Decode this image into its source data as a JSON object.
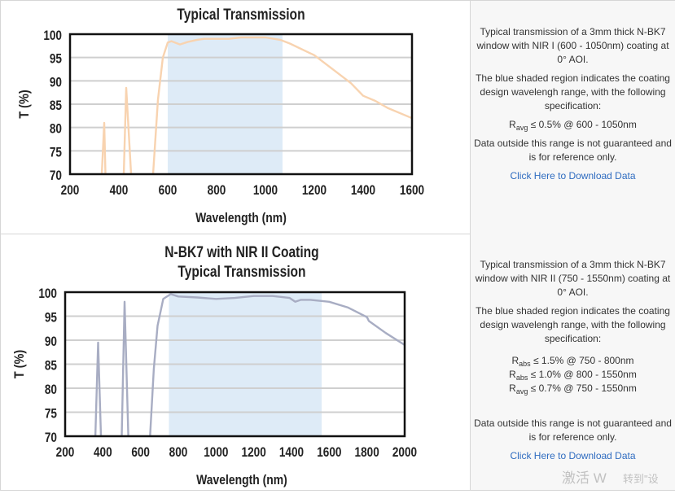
{
  "rows": [
    {
      "description": {
        "intro": "Typical transmission of a 3mm thick N-BK7 window with NIR I (600 - 1050nm) coating at 0° AOI.",
        "shaded_note": "The blue shaded region indicates the coating design wavelengh range, with the following specification:",
        "specs": [
          {
            "symbol": "R",
            "sub": "avg",
            "text": "≤ 0.5% @ 600 - 1050nm"
          }
        ],
        "disclaimer": "Data outside this range is not guaranteed and is for reference only.",
        "download_link": "Click Here to Download Data"
      }
    },
    {
      "description": {
        "intro": "Typical transmission of a 3mm thick N-BK7 window with NIR II (750 - 1550nm) coating at 0° AOI.",
        "shaded_note": "The blue shaded region indicates the coating design wavelengh range, with the following specification:",
        "specs": [
          {
            "symbol": "R",
            "sub": "abs",
            "text": "≤ 1.5% @ 750 - 800nm"
          },
          {
            "symbol": "R",
            "sub": "abs",
            "text": "≤ 1.0% @ 800 - 1550nm"
          },
          {
            "symbol": "R",
            "sub": "avg",
            "text": "≤ 0.7% @ 750 - 1550nm"
          }
        ],
        "disclaimer": "Data outside this range is not guaranteed and is for reference only.",
        "download_link": "Click Here to Download Data"
      }
    }
  ],
  "watermark": {
    "line1": "激活 W",
    "line2": "转到\"设"
  },
  "chart_data": [
    {
      "type": "line",
      "title": [
        "Typical Transmission"
      ],
      "xlabel": "Wavelength (nm)",
      "ylabel": "T (%)",
      "xlim": [
        200,
        1600
      ],
      "ylim": [
        70,
        100
      ],
      "xticks": [
        200,
        400,
        600,
        800,
        1000,
        1200,
        1400,
        1600
      ],
      "yticks": [
        70,
        75,
        80,
        85,
        90,
        95,
        100
      ],
      "grid": true,
      "shaded_range": [
        600,
        1070
      ],
      "shade_color": "#deebf7",
      "line_color": "#f8d3b0",
      "series": [
        {
          "x": [
            330,
            340,
            345,
            null,
            420,
            430,
            450,
            null,
            540,
            560,
            580,
            600,
            615,
            650,
            680,
            720,
            750,
            850,
            900,
            1000,
            1060,
            1100,
            1200,
            1300,
            1350,
            1400,
            1450,
            1500,
            1600
          ],
          "y": [
            70,
            81,
            70,
            null,
            70,
            88.5,
            70,
            null,
            70,
            86,
            95,
            98.2,
            98.5,
            97.8,
            98.3,
            98.8,
            99,
            99,
            99.3,
            99.3,
            98.8,
            98,
            95.5,
            91.5,
            89.5,
            86.8,
            85.7,
            84.2,
            82
          ]
        }
      ]
    },
    {
      "type": "line",
      "title": [
        "N-BK7 with NIR II Coating",
        "Typical Transmission"
      ],
      "xlabel": "Wavelength (nm)",
      "ylabel": "T (%)",
      "xlim": [
        200,
        2000
      ],
      "ylim": [
        70,
        100
      ],
      "xticks": [
        200,
        400,
        600,
        800,
        1000,
        1200,
        1400,
        1600,
        1800,
        2000
      ],
      "yticks": [
        70,
        75,
        80,
        85,
        90,
        95,
        100
      ],
      "grid": true,
      "shaded_range": [
        750,
        1560
      ],
      "shade_color": "#deebf7",
      "line_color": "#a8adc3",
      "series": [
        {
          "x": [
            360,
            375,
            390,
            null,
            500,
            515,
            535,
            null,
            650,
            670,
            690,
            720,
            760,
            800,
            900,
            1000,
            1100,
            1200,
            1300,
            1390,
            1420,
            1450,
            1500,
            1600,
            1700,
            1800,
            1810,
            1900,
            2000
          ],
          "y": [
            70,
            89.5,
            70,
            null,
            70,
            98,
            70,
            null,
            70,
            84,
            93,
            98.6,
            99.6,
            99.1,
            98.9,
            98.6,
            98.8,
            99.2,
            99.2,
            98.8,
            98,
            98.4,
            98.4,
            98,
            96.8,
            94.8,
            94,
            91.5,
            89
          ]
        }
      ]
    }
  ]
}
